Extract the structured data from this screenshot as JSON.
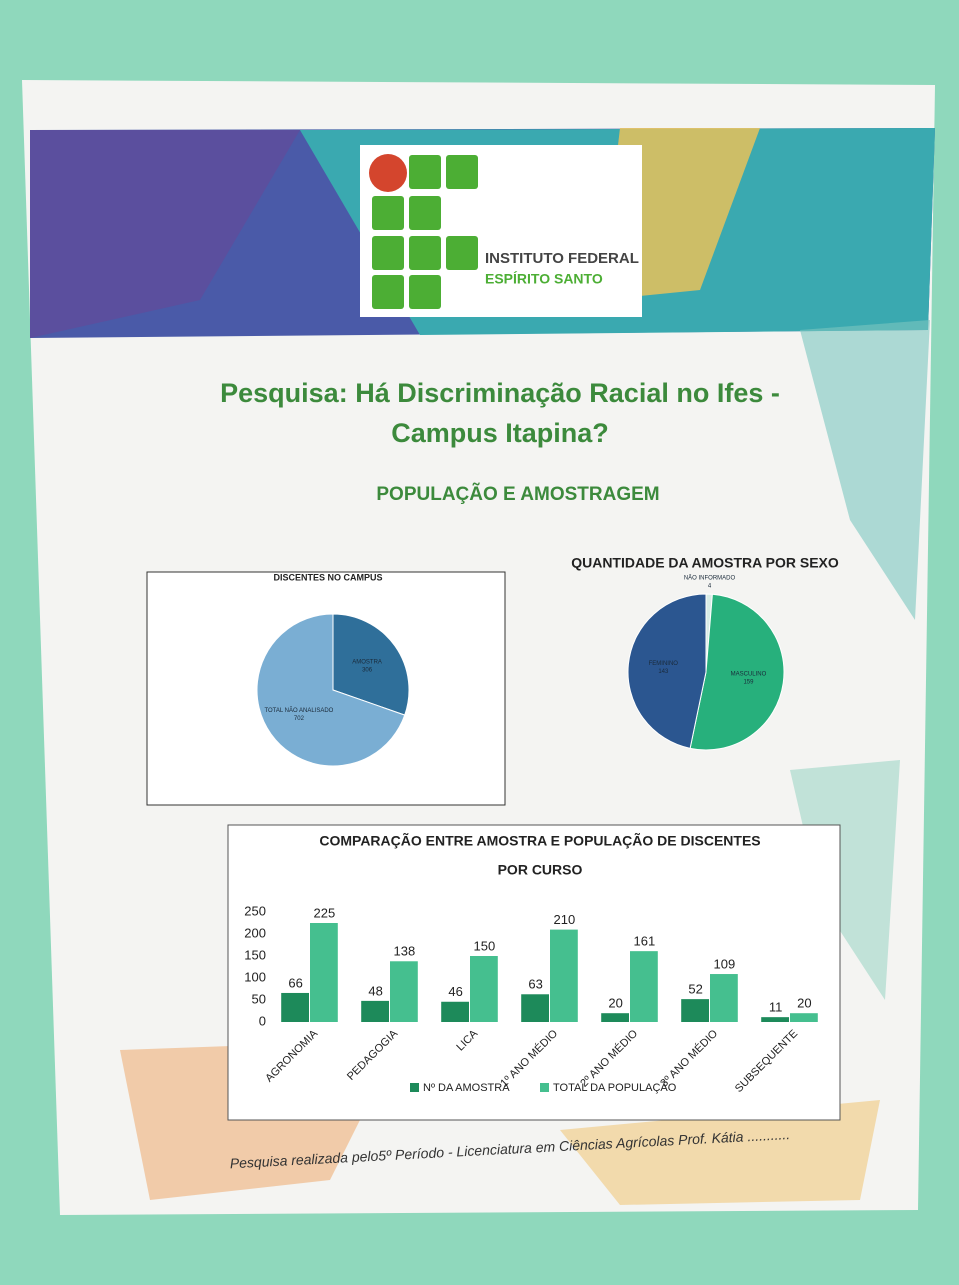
{
  "header": {
    "logo_line1": "INSTITUTO FEDERAL",
    "logo_line2": "ESPÍRITO SANTO",
    "title_line1": "Pesquisa: Há Discriminação Racial no Ifes -",
    "title_line2": "Campus Itapina?",
    "subtitle": "POPULAÇÃO E AMOSTRAGEM"
  },
  "footer": "Pesquisa realizada pelo5º Período - Licenciatura em Ciências Agrícolas Prof. Kátia ...........",
  "chart_data": [
    {
      "type": "pie",
      "title": "DISCENTES NO CAMPUS",
      "categories": [
        "AMOSTRA",
        "TOTAL NÃO ANALISADO"
      ],
      "values": [
        306,
        702
      ],
      "colors": [
        "#2f6f9a",
        "#7aaed3"
      ]
    },
    {
      "type": "pie",
      "title": "QUANTIDADE DA AMOSTRA POR SEXO",
      "categories": [
        "NÃO INFORMADO",
        "MASCULINO",
        "FEMININO"
      ],
      "values": [
        4,
        159,
        143
      ],
      "colors": [
        "#d8ece6",
        "#27b07c",
        "#2b5690"
      ]
    },
    {
      "type": "bar",
      "title_line1": "COMPARAÇÃO ENTRE AMOSTRA E POPULAÇÃO DE DISCENTES",
      "title_line2": "POR CURSO",
      "categories": [
        "AGRONOMIA",
        "PEDAGOGIA",
        "LICA",
        "1º ANO MÉDIO",
        "2º ANO MÉDIO",
        "3º ANO MÉDIO",
        "SUBSEQUENTE"
      ],
      "series": [
        {
          "name": "Nº DA AMOSTRA",
          "color": "#1d8a5a",
          "values": [
            66,
            48,
            46,
            63,
            20,
            52,
            11
          ]
        },
        {
          "name": "TOTAL DA POPULAÇÃO",
          "color": "#45bf8f",
          "values": [
            225,
            138,
            150,
            210,
            161,
            109,
            20
          ]
        }
      ],
      "ylim": [
        0,
        250
      ],
      "yticks": [
        0,
        50,
        100,
        150,
        200,
        250
      ],
      "grid": false,
      "legend": "bottom"
    }
  ]
}
